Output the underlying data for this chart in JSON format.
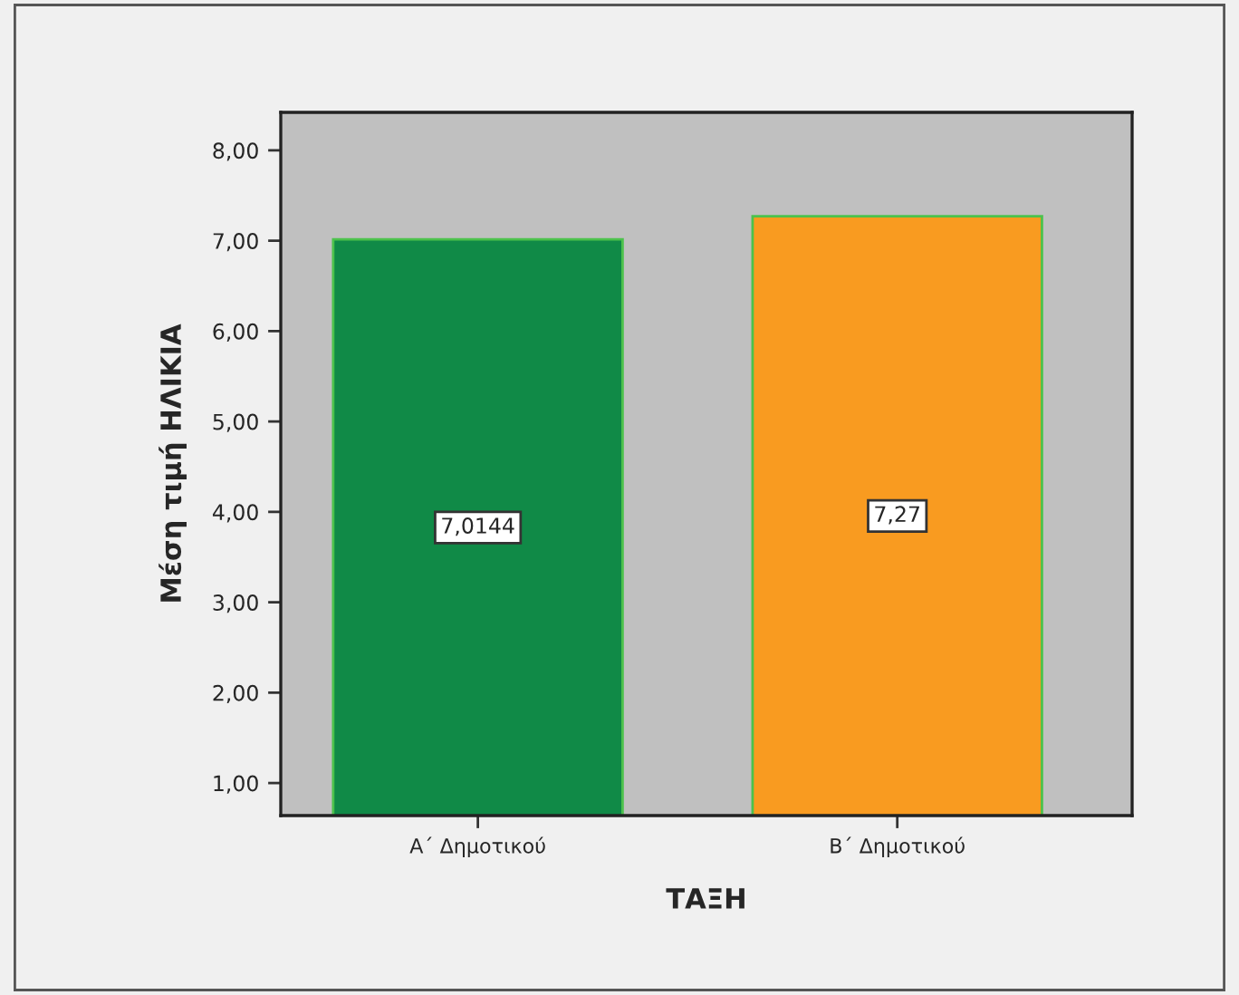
{
  "chart_data": {
    "type": "bar",
    "xlabel": "ΤΑΞΗ",
    "ylabel": "Μέση τιμή ΗΛΙΚΙΑ",
    "categories": [
      "Α΄ Δημοτικού",
      "Β΄ Δημοτικού"
    ],
    "values": [
      7.0144,
      7.27
    ],
    "colors": [
      "#108a47",
      "#f99b20"
    ],
    "value_labels": [
      "7,0144",
      "7,27"
    ],
    "ylim": [
      0.64,
      8.42
    ],
    "yticks": [
      {
        "value": 1,
        "label": "1,00"
      },
      {
        "value": 2,
        "label": "2,00"
      },
      {
        "value": 3,
        "label": "3,00"
      },
      {
        "value": 4,
        "label": "4,00"
      },
      {
        "value": 5,
        "label": "5,00"
      },
      {
        "value": 6,
        "label": "6,00"
      },
      {
        "value": 7,
        "label": "7,00"
      },
      {
        "value": 8,
        "label": "8,00"
      }
    ],
    "grid": false,
    "legend": false
  }
}
